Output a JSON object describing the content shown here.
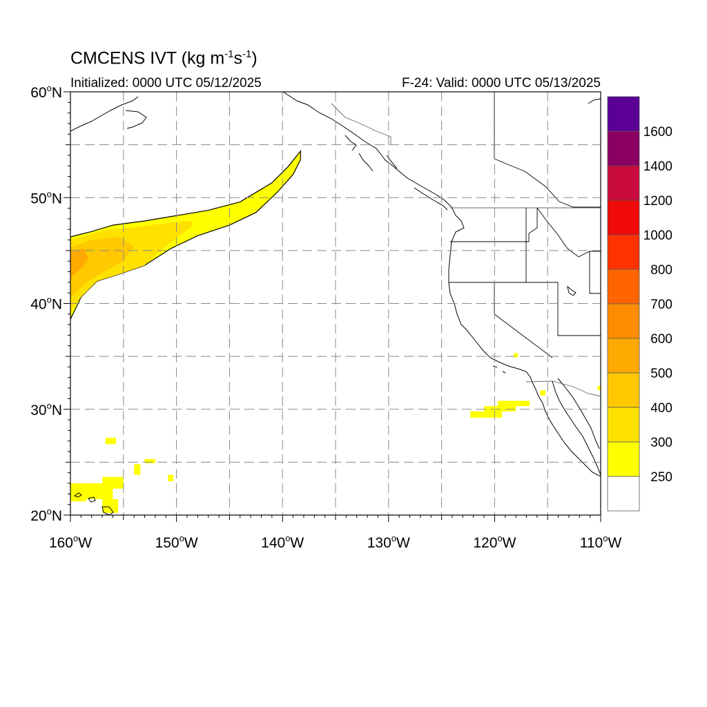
{
  "title": {
    "text": "CMCENS IVT (kg m",
    "sup1": "-1",
    "mid": "s",
    "sup2": "-1",
    "end": ")"
  },
  "subtitle_left": "Initialized: 0000 UTC 05/12/2025",
  "subtitle_right": "F-24: Valid: 0000 UTC 05/13/2025",
  "map": {
    "lon_range": [
      -160,
      -110
    ],
    "lat_range": [
      20,
      60
    ],
    "lon_ticks": [
      {
        "value": -160,
        "label": "160",
        "hemi": "W"
      },
      {
        "value": -150,
        "label": "150",
        "hemi": "W"
      },
      {
        "value": -140,
        "label": "140",
        "hemi": "W"
      },
      {
        "value": -130,
        "label": "130",
        "hemi": "W"
      },
      {
        "value": -120,
        "label": "120",
        "hemi": "W"
      },
      {
        "value": -110,
        "label": "110",
        "hemi": "W"
      }
    ],
    "lat_ticks": [
      {
        "value": 60,
        "label": "60",
        "hemi": "N"
      },
      {
        "value": 50,
        "label": "50",
        "hemi": "N"
      },
      {
        "value": 40,
        "label": "40",
        "hemi": "N"
      },
      {
        "value": 30,
        "label": "30",
        "hemi": "N"
      },
      {
        "value": 20,
        "label": "20",
        "hemi": "N"
      }
    ],
    "gridlines": "dashed every 5 degrees"
  },
  "colorbar": {
    "levels": [
      "250",
      "300",
      "400",
      "500",
      "600",
      "700",
      "800",
      "1000",
      "1200",
      "1400",
      "1600"
    ],
    "colors": [
      "#ffffff",
      "#ffff00",
      "#ffe100",
      "#ffc800",
      "#ffaa00",
      "#ff8c00",
      "#ff6400",
      "#ff3200",
      "#f00a0a",
      "#c80a3c",
      "#8c0064",
      "#5a0096"
    ]
  },
  "ivt_regions": [
    {
      "name": "atmospheric-river-outer",
      "level": "250",
      "points": [
        [
          -160,
          38.5
        ],
        [
          -160,
          46.3
        ],
        [
          -158,
          46.8
        ],
        [
          -156,
          47.4
        ],
        [
          -153,
          47.8
        ],
        [
          -150,
          48.3
        ],
        [
          -147,
          48.8
        ],
        [
          -144,
          49.6
        ],
        [
          -141,
          51.4
        ],
        [
          -139.5,
          52.9
        ],
        [
          -138.3,
          54.4
        ],
        [
          -138.3,
          53.6
        ],
        [
          -139,
          52.2
        ],
        [
          -140.5,
          50.5
        ],
        [
          -142.5,
          48.6
        ],
        [
          -145,
          47.4
        ],
        [
          -148,
          46.4
        ],
        [
          -150.5,
          45.2
        ],
        [
          -153,
          43.6
        ],
        [
          -155,
          42.9
        ],
        [
          -157.5,
          42.1
        ],
        [
          -159,
          40.6
        ],
        [
          -160,
          38.5
        ]
      ]
    },
    {
      "name": "atmospheric-river-300",
      "level": "300",
      "points": [
        [
          -160,
          39.3
        ],
        [
          -160,
          46.0
        ],
        [
          -157,
          46.9
        ],
        [
          -154,
          47.2
        ],
        [
          -151,
          47.6
        ],
        [
          -148.5,
          47.8
        ],
        [
          -148.5,
          47.3
        ],
        [
          -150,
          46.2
        ],
        [
          -151.5,
          45.0
        ],
        [
          -153,
          43.6
        ],
        [
          -155,
          42.9
        ],
        [
          -157.5,
          42.1
        ],
        [
          -159,
          40.6
        ],
        [
          -160,
          39.3
        ]
      ]
    },
    {
      "name": "atmospheric-river-400",
      "level": "400",
      "points": [
        [
          -160,
          40.5
        ],
        [
          -160,
          45.3
        ],
        [
          -158,
          46.0
        ],
        [
          -155.5,
          46.3
        ],
        [
          -154,
          45.4
        ],
        [
          -155,
          44.0
        ],
        [
          -156.5,
          43.2
        ],
        [
          -158.5,
          42.0
        ],
        [
          -160,
          40.5
        ]
      ]
    },
    {
      "name": "atmospheric-river-500",
      "level": "500",
      "points": [
        [
          -160,
          42.5
        ],
        [
          -160,
          44.9
        ],
        [
          -158.8,
          45.2
        ],
        [
          -158.3,
          44.3
        ],
        [
          -159,
          43.3
        ],
        [
          -160,
          42.5
        ]
      ]
    },
    {
      "name": "hawaii-patch",
      "level": "250",
      "points": [
        [
          -160,
          23.0
        ],
        [
          -157,
          23.0
        ],
        [
          -157,
          23.6
        ],
        [
          -155,
          23.6
        ],
        [
          -155,
          22.5
        ],
        [
          -156,
          22.5
        ],
        [
          -156,
          21.5
        ],
        [
          -155.5,
          21.5
        ],
        [
          -155.5,
          20.2
        ],
        [
          -157,
          20.2
        ],
        [
          -157,
          21.5
        ],
        [
          -158.5,
          21.5
        ],
        [
          -158.5,
          21.3
        ],
        [
          -160,
          21.3
        ]
      ]
    },
    {
      "name": "small-patch-a",
      "level": "250",
      "points": [
        [
          -156.7,
          27.3
        ],
        [
          -155.7,
          27.3
        ],
        [
          -155.7,
          26.7
        ],
        [
          -156.7,
          26.7
        ]
      ]
    },
    {
      "name": "small-patch-b",
      "level": "250",
      "points": [
        [
          -153.0,
          25.3
        ],
        [
          -152.0,
          25.3
        ],
        [
          -152.0,
          24.9
        ],
        [
          -153.0,
          24.9
        ]
      ]
    },
    {
      "name": "small-patch-c",
      "level": "250",
      "points": [
        [
          -154.0,
          24.8
        ],
        [
          -153.4,
          24.8
        ],
        [
          -153.4,
          23.8
        ],
        [
          -154.0,
          23.8
        ]
      ]
    },
    {
      "name": "small-patch-d",
      "level": "250",
      "points": [
        [
          -150.8,
          23.8
        ],
        [
          -150.3,
          23.8
        ],
        [
          -150.3,
          23.2
        ],
        [
          -150.8,
          23.2
        ]
      ]
    },
    {
      "name": "baja-patch",
      "level": "250",
      "points": [
        [
          -122.3,
          29.8
        ],
        [
          -121.0,
          29.8
        ],
        [
          -121.0,
          30.3
        ],
        [
          -119.7,
          30.3
        ],
        [
          -119.7,
          30.8
        ],
        [
          -116.7,
          30.8
        ],
        [
          -116.7,
          30.3
        ],
        [
          -118.0,
          30.3
        ],
        [
          -118.0,
          29.8
        ],
        [
          -119.3,
          29.8
        ],
        [
          -119.3,
          29.2
        ],
        [
          -122.3,
          29.2
        ]
      ]
    },
    {
      "name": "small-patch-e",
      "level": "250",
      "points": [
        [
          -118.2,
          35.3
        ],
        [
          -117.8,
          35.3
        ],
        [
          -117.8,
          34.9
        ],
        [
          -118.2,
          34.9
        ]
      ]
    },
    {
      "name": "small-patch-f",
      "level": "250",
      "points": [
        [
          -115.7,
          31.8
        ],
        [
          -115.2,
          31.8
        ],
        [
          -115.2,
          31.3
        ],
        [
          -115.7,
          31.3
        ]
      ]
    },
    {
      "name": "small-patch-g",
      "level": "250",
      "points": [
        [
          -110.3,
          32.2
        ],
        [
          -110.0,
          32.2
        ],
        [
          -110.0,
          31.8
        ],
        [
          -110.3,
          31.8
        ]
      ]
    }
  ]
}
